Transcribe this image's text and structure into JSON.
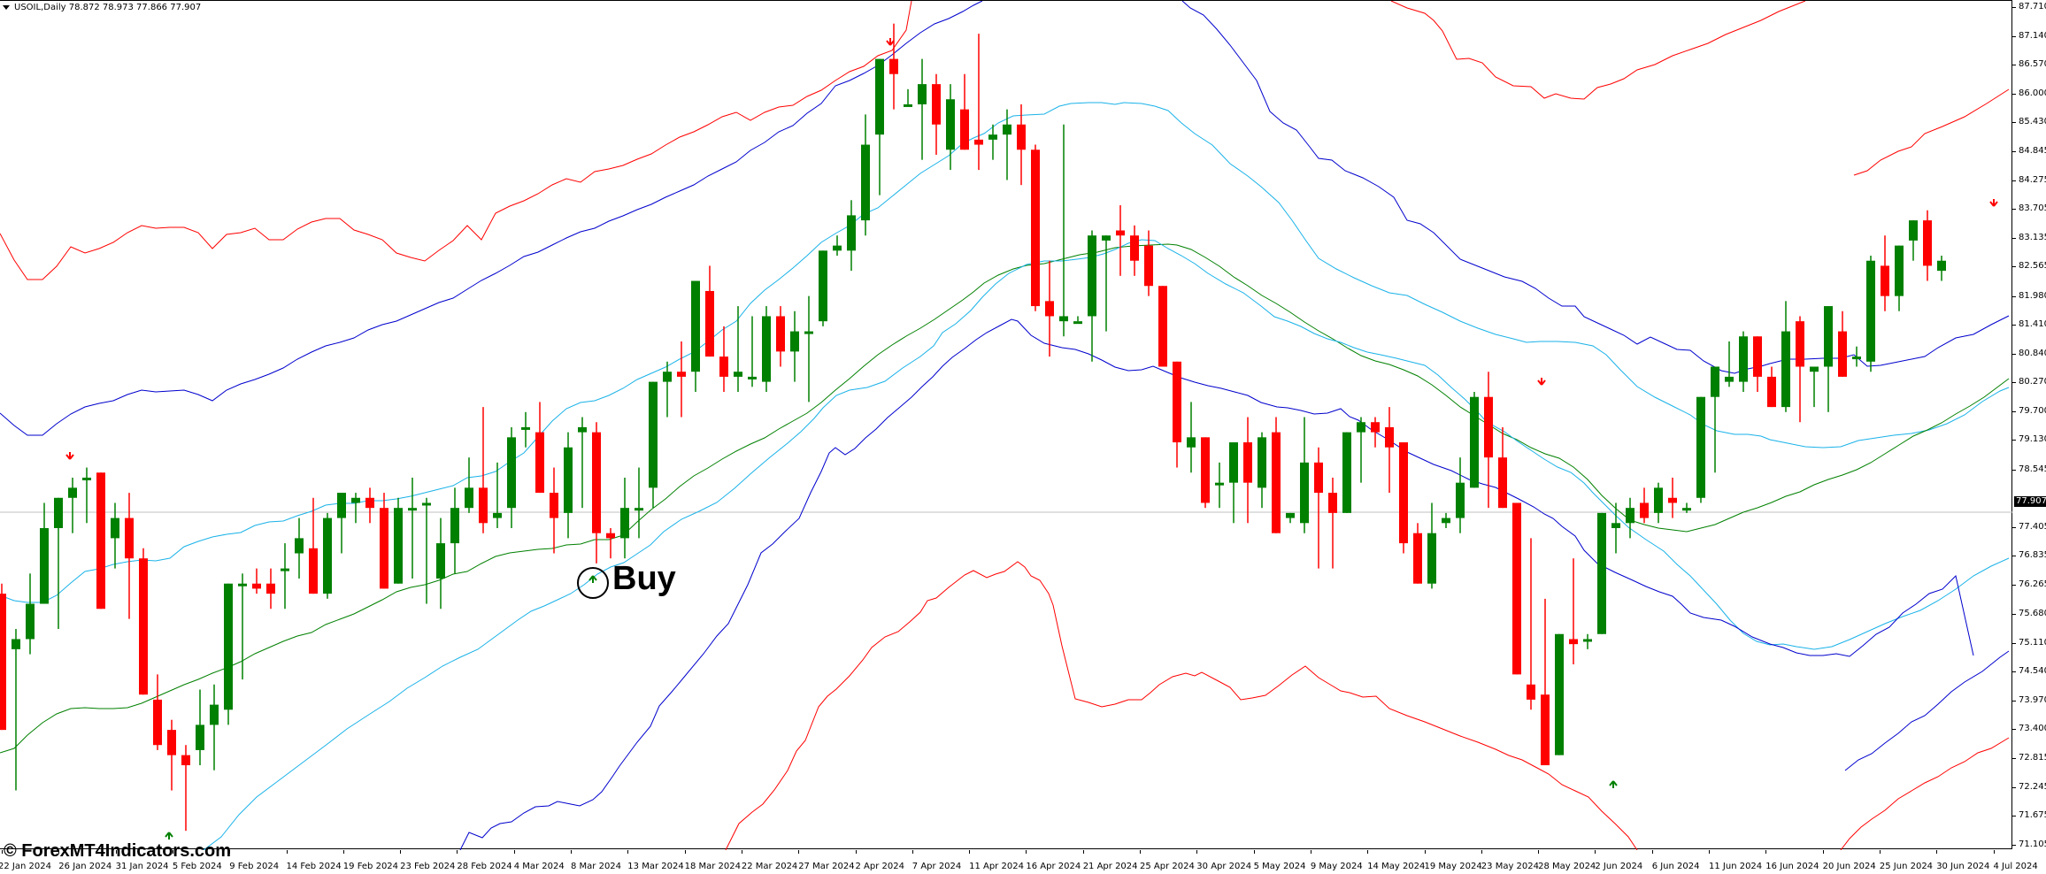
{
  "window": {
    "symbol": "USOIL,Daily",
    "ohlc": "78.872 78.973 77.866 77.907",
    "title": "USOIL,Daily  78.872 78.973 77.866 77.907"
  },
  "watermark": "© ForexMT4Indicators.com",
  "annotation": {
    "label": "Buy"
  },
  "colors": {
    "bull": "#008000",
    "bear": "#ff0000",
    "outer_band": "#ff0000",
    "mid_band": "#0000cd",
    "inner_band": "#1ab2e8",
    "center_line": "#008000",
    "current_price_line": "#c0c0c0"
  },
  "price_axis": {
    "labels": [
      "87.710",
      "87.140",
      "86.570",
      "86.000",
      "85.430",
      "84.845",
      "84.275",
      "83.705",
      "83.135",
      "82.565",
      "81.980",
      "81.410",
      "80.840",
      "80.270",
      "79.700",
      "79.130",
      "78.545",
      "77.405",
      "76.835",
      "76.265",
      "75.680",
      "75.110",
      "74.540",
      "73.970",
      "73.400",
      "72.815",
      "72.245",
      "71.675",
      "71.105"
    ],
    "current_price": "77.907"
  },
  "time_axis": {
    "labels": [
      "22 Jan 2024",
      "26 Jan 2024",
      "31 Jan 2024",
      "5 Feb 2024",
      "9 Feb 2024",
      "14 Feb 2024",
      "19 Feb 2024",
      "23 Feb 2024",
      "28 Feb 2024",
      "4 Mar 2024",
      "8 Mar 2024",
      "13 Mar 2024",
      "18 Mar 2024",
      "22 Mar 2024",
      "27 Mar 2024",
      "2 Apr 2024",
      "7 Apr 2024",
      "11 Apr 2024",
      "16 Apr 2024",
      "21 Apr 2024",
      "25 Apr 2024",
      "30 Apr 2024",
      "5 May 2024",
      "9 May 2024",
      "14 May 2024",
      "19 May 2024",
      "23 May 2024",
      "28 May 2024",
      "2 Jun 2024",
      "6 Jun 2024",
      "11 Jun 2024",
      "16 Jun 2024",
      "20 Jun 2024",
      "25 Jun 2024",
      "30 Jun 2024",
      "4 Jul 2024"
    ]
  },
  "chart_data": {
    "type": "candlestick",
    "title": "USOIL,Daily",
    "ylim": [
      71.105,
      87.71
    ],
    "bar_spacing_px": 16,
    "first_bar_x": 0,
    "candles": [
      [
        76.1,
        76.3,
        74.0,
        73.4
      ],
      [
        75.0,
        75.4,
        72.2,
        75.2
      ],
      [
        75.2,
        76.5,
        74.9,
        75.9
      ],
      [
        75.9,
        77.9,
        75.9,
        77.4
      ],
      [
        77.4,
        78.0,
        75.4,
        78.0
      ],
      [
        78.0,
        78.4,
        77.3,
        78.2
      ],
      [
        78.4,
        78.6,
        77.5,
        78.4
      ],
      [
        78.5,
        78.5,
        75.8,
        75.8
      ],
      [
        77.2,
        77.9,
        76.6,
        77.6
      ],
      [
        77.6,
        78.1,
        75.6,
        76.8
      ],
      [
        76.8,
        77.0,
        74.1,
        74.1
      ],
      [
        74.0,
        74.5,
        73.0,
        73.1
      ],
      [
        73.4,
        73.6,
        72.2,
        72.9
      ],
      [
        72.9,
        73.1,
        71.4,
        72.7
      ],
      [
        73.0,
        74.2,
        72.7,
        73.5
      ],
      [
        73.5,
        74.3,
        72.6,
        73.9
      ],
      [
        73.8,
        76.3,
        73.5,
        76.3
      ],
      [
        76.3,
        76.5,
        74.4,
        76.3
      ],
      [
        76.3,
        76.6,
        76.1,
        76.2
      ],
      [
        76.3,
        76.6,
        75.8,
        76.1
      ],
      [
        76.6,
        77.1,
        75.8,
        76.6
      ],
      [
        76.9,
        77.6,
        76.4,
        77.2
      ],
      [
        77.0,
        78.0,
        76.3,
        76.1
      ],
      [
        76.1,
        77.7,
        76.0,
        77.6
      ],
      [
        77.6,
        78.1,
        76.9,
        78.1
      ],
      [
        77.9,
        78.1,
        77.5,
        78.0
      ],
      [
        78.0,
        78.2,
        77.5,
        77.8
      ],
      [
        77.8,
        78.1,
        76.2,
        76.2
      ],
      [
        76.3,
        78.0,
        76.8,
        77.8
      ],
      [
        77.8,
        78.4,
        76.4,
        77.8
      ],
      [
        77.9,
        78.0,
        75.9,
        77.9
      ],
      [
        76.4,
        77.6,
        75.8,
        77.1
      ],
      [
        77.1,
        78.2,
        76.5,
        77.8
      ],
      [
        77.8,
        78.8,
        77.7,
        78.2
      ],
      [
        78.2,
        79.8,
        77.3,
        77.5
      ],
      [
        77.6,
        78.7,
        77.4,
        77.7
      ],
      [
        77.8,
        79.4,
        77.4,
        79.2
      ],
      [
        79.4,
        79.7,
        79.0,
        79.4
      ],
      [
        79.3,
        79.9,
        78.1,
        78.1
      ],
      [
        78.1,
        78.6,
        76.9,
        77.6
      ],
      [
        77.7,
        79.3,
        77.2,
        79.0
      ],
      [
        79.3,
        79.6,
        77.8,
        79.4
      ],
      [
        79.3,
        79.5,
        76.7,
        77.3
      ],
      [
        77.3,
        77.4,
        76.8,
        77.2
      ],
      [
        77.2,
        78.4,
        76.8,
        77.8
      ],
      [
        77.8,
        78.6,
        77.2,
        77.8
      ],
      [
        78.2,
        80.3,
        77.8,
        80.3
      ],
      [
        80.3,
        80.7,
        79.6,
        80.5
      ],
      [
        80.5,
        81.1,
        79.6,
        80.4
      ],
      [
        80.5,
        82.3,
        80.1,
        82.3
      ],
      [
        82.1,
        82.6,
        80.8,
        80.8
      ],
      [
        80.8,
        81.4,
        80.1,
        80.4
      ],
      [
        80.4,
        81.8,
        80.1,
        80.5
      ],
      [
        80.4,
        81.6,
        80.2,
        80.4
      ],
      [
        80.3,
        81.8,
        80.1,
        81.6
      ],
      [
        81.6,
        81.8,
        80.6,
        80.9
      ],
      [
        80.9,
        81.7,
        80.3,
        81.3
      ],
      [
        81.3,
        82.0,
        79.9,
        81.3
      ],
      [
        81.5,
        82.9,
        81.4,
        82.9
      ],
      [
        82.9,
        83.2,
        82.8,
        83.0
      ],
      [
        82.9,
        83.9,
        82.5,
        83.6
      ],
      [
        83.5,
        85.6,
        83.2,
        85.0
      ],
      [
        85.2,
        86.2,
        84.0,
        86.7
      ],
      [
        86.7,
        87.4,
        85.7,
        86.4
      ],
      [
        85.8,
        86.1,
        85.8,
        85.8
      ],
      [
        85.8,
        86.7,
        84.7,
        86.2
      ],
      [
        86.2,
        86.4,
        84.8,
        85.4
      ],
      [
        84.9,
        86.2,
        84.5,
        85.9
      ],
      [
        85.7,
        86.4,
        84.9,
        84.9
      ],
      [
        85.1,
        87.2,
        84.5,
        85.0
      ],
      [
        85.1,
        85.4,
        84.7,
        85.2
      ],
      [
        85.2,
        85.7,
        84.3,
        85.4
      ],
      [
        85.4,
        85.8,
        84.2,
        84.9
      ],
      [
        84.9,
        85.0,
        81.7,
        81.8
      ],
      [
        81.9,
        82.7,
        80.8,
        81.6
      ],
      [
        81.5,
        85.4,
        81.2,
        81.6
      ],
      [
        81.5,
        81.6,
        81.5,
        81.5
      ],
      [
        81.6,
        83.3,
        80.7,
        83.2
      ],
      [
        83.1,
        83.2,
        81.3,
        83.2
      ],
      [
        83.3,
        83.8,
        82.4,
        83.2
      ],
      [
        83.2,
        83.4,
        82.4,
        82.7
      ],
      [
        83.0,
        83.3,
        82.0,
        82.2
      ],
      [
        82.2,
        82.2,
        80.7,
        80.6
      ],
      [
        80.7,
        80.7,
        78.6,
        79.1
      ],
      [
        79.0,
        79.9,
        78.5,
        79.2
      ],
      [
        79.2,
        79.2,
        77.8,
        77.9
      ],
      [
        78.3,
        78.7,
        77.8,
        78.3
      ],
      [
        78.3,
        79.1,
        77.5,
        79.1
      ],
      [
        79.1,
        79.6,
        77.5,
        78.3
      ],
      [
        78.2,
        79.3,
        77.8,
        79.2
      ],
      [
        79.3,
        79.6,
        77.4,
        77.3
      ],
      [
        77.6,
        77.7,
        77.5,
        77.7
      ],
      [
        77.5,
        79.6,
        77.3,
        78.7
      ],
      [
        78.7,
        79.0,
        76.6,
        78.1
      ],
      [
        78.1,
        78.4,
        76.6,
        77.7
      ],
      [
        77.7,
        79.2,
        78.0,
        79.3
      ],
      [
        79.3,
        79.6,
        78.3,
        79.5
      ],
      [
        79.5,
        79.6,
        79.0,
        79.3
      ],
      [
        79.4,
        79.8,
        78.1,
        79.0
      ],
      [
        79.1,
        79.0,
        76.9,
        77.1
      ],
      [
        77.3,
        77.5,
        76.3,
        76.3
      ],
      [
        76.3,
        77.9,
        76.2,
        77.3
      ],
      [
        77.5,
        77.7,
        77.4,
        77.6
      ],
      [
        77.6,
        78.8,
        77.3,
        78.3
      ],
      [
        78.2,
        80.1,
        78.2,
        80.0
      ],
      [
        80.0,
        80.5,
        77.8,
        78.8
      ],
      [
        78.8,
        79.4,
        78.0,
        77.8
      ],
      [
        77.9,
        77.9,
        74.5,
        74.5
      ],
      [
        74.3,
        77.2,
        73.8,
        74.0
      ],
      [
        74.1,
        76.0,
        72.9,
        72.7
      ],
      [
        72.9,
        75.3,
        72.9,
        75.3
      ],
      [
        75.2,
        76.8,
        74.7,
        75.1
      ],
      [
        75.2,
        75.3,
        75.0,
        75.2
      ],
      [
        75.3,
        77.7,
        75.3,
        77.7
      ],
      [
        77.4,
        77.9,
        76.9,
        77.5
      ],
      [
        77.5,
        78.0,
        77.2,
        77.8
      ],
      [
        77.9,
        78.2,
        77.5,
        77.6
      ],
      [
        77.7,
        78.3,
        77.5,
        78.2
      ],
      [
        78.0,
        78.4,
        77.6,
        77.9
      ],
      [
        77.8,
        77.9,
        77.7,
        77.8
      ],
      [
        78.0,
        78.6,
        77.9,
        80.0
      ],
      [
        80.0,
        80.5,
        78.5,
        80.6
      ],
      [
        80.3,
        81.1,
        80.2,
        80.4
      ],
      [
        80.3,
        81.3,
        80.1,
        81.2
      ],
      [
        81.2,
        81.1,
        80.1,
        80.4
      ],
      [
        80.4,
        80.6,
        79.9,
        79.8
      ],
      [
        79.8,
        81.9,
        79.7,
        81.3
      ],
      [
        81.5,
        81.6,
        79.5,
        80.6
      ],
      [
        80.5,
        80.6,
        79.8,
        80.6
      ],
      [
        80.6,
        80.5,
        79.7,
        81.8
      ],
      [
        81.3,
        81.7,
        80.5,
        80.4
      ],
      [
        80.8,
        81.0,
        80.6,
        80.8
      ],
      [
        80.7,
        82.8,
        80.5,
        82.7
      ],
      [
        82.6,
        83.2,
        81.7,
        82.0
      ],
      [
        82.0,
        83.0,
        81.7,
        83.0
      ],
      [
        83.1,
        83.4,
        82.7,
        83.5
      ],
      [
        83.5,
        83.7,
        82.3,
        82.6
      ],
      [
        82.5,
        82.8,
        82.3,
        82.7
      ]
    ]
  }
}
